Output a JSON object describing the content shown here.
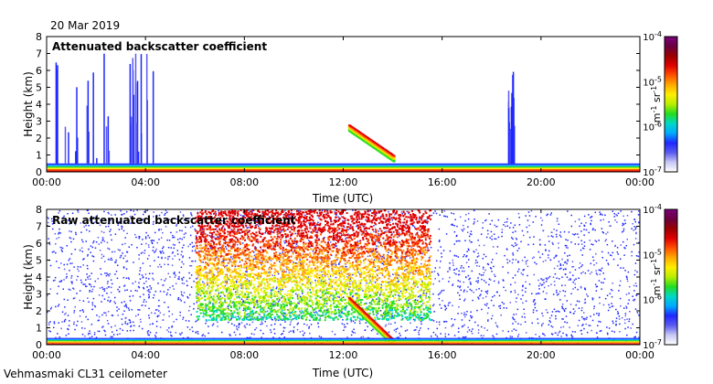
{
  "header": {
    "date": "20 Mar 2019"
  },
  "footer": {
    "station": "Vehmasmaki CL31 ceilometer"
  },
  "colorbar": {
    "ticks": [
      "10",
      "10",
      "10",
      "10"
    ],
    "exponents": [
      "-4",
      "-5",
      "-6",
      "-7"
    ],
    "unit_m": "m",
    "unit_m_exp": "-1",
    "unit_sr": "sr",
    "unit_sr_exp": "-1",
    "colors": [
      "#ffffff",
      "#c7c7f5",
      "#5a5af0",
      "#1e28ff",
      "#00aaff",
      "#00d8c8",
      "#22dd22",
      "#b8ee00",
      "#ffee00",
      "#ffaa00",
      "#ff5000",
      "#e00000",
      "#9a0000",
      "#6a0040",
      "#7a007a"
    ]
  },
  "chart_data": [
    {
      "type": "heatmap",
      "title": "Attenuated backscatter coefficient",
      "xlabel": "Time (UTC)",
      "ylabel": "Height (km)",
      "x_ticks": [
        "00:00",
        "04:00",
        "08:00",
        "12:00",
        "16:00",
        "20:00",
        "00:00"
      ],
      "y_ticks": [
        "0",
        "1",
        "2",
        "3",
        "4",
        "5",
        "6",
        "7",
        "8"
      ],
      "xlim_hours": [
        0,
        24
      ],
      "ylim_km": [
        0,
        8
      ],
      "color_scale": "log",
      "clim": [
        1e-07,
        0.0001
      ],
      "features": [
        {
          "kind": "boundary_layer",
          "x_hours": [
            0,
            24
          ],
          "height_km": [
            0,
            0.5
          ]
        },
        {
          "kind": "precip_streaks",
          "x_hours": [
            0.3,
            2.6
          ],
          "height_km": [
            0.5,
            7.5
          ]
        },
        {
          "kind": "precip_streaks",
          "x_hours": [
            3.3,
            4.3
          ],
          "height_km": [
            0.5,
            7.0
          ]
        },
        {
          "kind": "descending_cloud",
          "x_hours": [
            12.2,
            14.0
          ],
          "height_km_start": 2.8,
          "height_km_end": 1.0
        },
        {
          "kind": "precip_streaks",
          "x_hours": [
            18.6,
            18.9
          ],
          "height_km": [
            0.5,
            6.0
          ]
        }
      ]
    },
    {
      "type": "heatmap",
      "title": "Raw attenuated backscatter coefficient",
      "xlabel": "Time (UTC)",
      "ylabel": "Height (km)",
      "x_ticks": [
        "00:00",
        "04:00",
        "08:00",
        "12:00",
        "16:00",
        "20:00",
        "00:00"
      ],
      "y_ticks": [
        "0",
        "1",
        "2",
        "3",
        "4",
        "5",
        "6",
        "7",
        "8"
      ],
      "xlim_hours": [
        0,
        24
      ],
      "ylim_km": [
        0,
        8
      ],
      "color_scale": "log",
      "clim": [
        1e-07,
        0.0001
      ],
      "features": [
        {
          "kind": "noise_background",
          "x_hours": [
            0,
            24
          ],
          "height_km": [
            0,
            8
          ]
        },
        {
          "kind": "high_noise",
          "x_hours": [
            6.0,
            15.5
          ],
          "height_km": [
            1.5,
            8
          ]
        },
        {
          "kind": "descending_cloud",
          "x_hours": [
            12.2,
            14.0
          ],
          "height_km_start": 2.8,
          "height_km_end": 0.3
        },
        {
          "kind": "boundary_layer",
          "x_hours": [
            0,
            24
          ],
          "height_km": [
            0,
            0.4
          ]
        }
      ]
    }
  ]
}
